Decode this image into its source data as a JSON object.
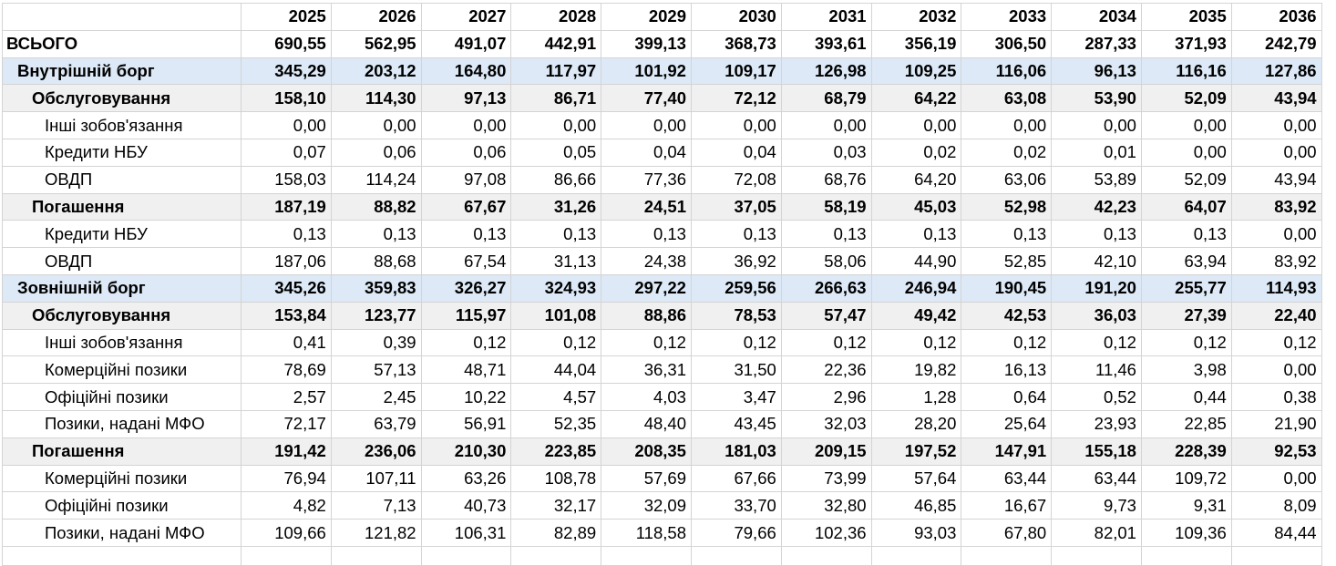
{
  "years": [
    "2025",
    "2026",
    "2027",
    "2028",
    "2029",
    "2030",
    "2031",
    "2032",
    "2033",
    "2034",
    "2035",
    "2036"
  ],
  "rows": [
    {
      "label": "ВСЬОГО",
      "level": 0,
      "values": [
        "690,55",
        "562,95",
        "491,07",
        "442,91",
        "399,13",
        "368,73",
        "393,61",
        "356,19",
        "306,50",
        "287,33",
        "371,93",
        "242,79"
      ]
    },
    {
      "label": "Внутрішній борг",
      "level": 1,
      "values": [
        "345,29",
        "203,12",
        "164,80",
        "117,97",
        "101,92",
        "109,17",
        "126,98",
        "109,25",
        "116,06",
        "96,13",
        "116,16",
        "127,86"
      ]
    },
    {
      "label": "Обслуговування",
      "level": 2,
      "values": [
        "158,10",
        "114,30",
        "97,13",
        "86,71",
        "77,40",
        "72,12",
        "68,79",
        "64,22",
        "63,08",
        "53,90",
        "52,09",
        "43,94"
      ]
    },
    {
      "label": "Інші зобов'язання",
      "level": 3,
      "values": [
        "0,00",
        "0,00",
        "0,00",
        "0,00",
        "0,00",
        "0,00",
        "0,00",
        "0,00",
        "0,00",
        "0,00",
        "0,00",
        "0,00"
      ]
    },
    {
      "label": "Кредити НБУ",
      "level": 3,
      "values": [
        "0,07",
        "0,06",
        "0,06",
        "0,05",
        "0,04",
        "0,04",
        "0,03",
        "0,02",
        "0,02",
        "0,01",
        "0,00",
        "0,00"
      ]
    },
    {
      "label": "ОВДП",
      "level": 3,
      "values": [
        "158,03",
        "114,24",
        "97,08",
        "86,66",
        "77,36",
        "72,08",
        "68,76",
        "64,20",
        "63,06",
        "53,89",
        "52,09",
        "43,94"
      ]
    },
    {
      "label": "Погашення",
      "level": 2,
      "values": [
        "187,19",
        "88,82",
        "67,67",
        "31,26",
        "24,51",
        "37,05",
        "58,19",
        "45,03",
        "52,98",
        "42,23",
        "64,07",
        "83,92"
      ]
    },
    {
      "label": "Кредити НБУ",
      "level": 3,
      "values": [
        "0,13",
        "0,13",
        "0,13",
        "0,13",
        "0,13",
        "0,13",
        "0,13",
        "0,13",
        "0,13",
        "0,13",
        "0,13",
        "0,00"
      ]
    },
    {
      "label": "ОВДП",
      "level": 3,
      "values": [
        "187,06",
        "88,68",
        "67,54",
        "31,13",
        "24,38",
        "36,92",
        "58,06",
        "44,90",
        "52,85",
        "42,10",
        "63,94",
        "83,92"
      ]
    },
    {
      "label": "Зовнішній борг",
      "level": 1,
      "values": [
        "345,26",
        "359,83",
        "326,27",
        "324,93",
        "297,22",
        "259,56",
        "266,63",
        "246,94",
        "190,45",
        "191,20",
        "255,77",
        "114,93"
      ]
    },
    {
      "label": "Обслуговування",
      "level": 2,
      "values": [
        "153,84",
        "123,77",
        "115,97",
        "101,08",
        "88,86",
        "78,53",
        "57,47",
        "49,42",
        "42,53",
        "36,03",
        "27,39",
        "22,40"
      ]
    },
    {
      "label": "Інші зобов'язання",
      "level": 3,
      "values": [
        "0,41",
        "0,39",
        "0,12",
        "0,12",
        "0,12",
        "0,12",
        "0,12",
        "0,12",
        "0,12",
        "0,12",
        "0,12",
        "0,12"
      ]
    },
    {
      "label": "Комерційні позики",
      "level": 3,
      "values": [
        "78,69",
        "57,13",
        "48,71",
        "44,04",
        "36,31",
        "31,50",
        "22,36",
        "19,82",
        "16,13",
        "11,46",
        "3,98",
        "0,00"
      ]
    },
    {
      "label": "Офіційні позики",
      "level": 3,
      "values": [
        "2,57",
        "2,45",
        "10,22",
        "4,57",
        "4,03",
        "3,47",
        "2,96",
        "1,28",
        "0,64",
        "0,52",
        "0,44",
        "0,38"
      ]
    },
    {
      "label": "Позики, надані МФО",
      "level": 3,
      "values": [
        "72,17",
        "63,79",
        "56,91",
        "52,35",
        "48,40",
        "43,45",
        "32,03",
        "28,20",
        "25,64",
        "23,93",
        "22,85",
        "21,90"
      ]
    },
    {
      "label": "Погашення",
      "level": 2,
      "values": [
        "191,42",
        "236,06",
        "210,30",
        "223,85",
        "208,35",
        "181,03",
        "209,15",
        "197,52",
        "147,91",
        "155,18",
        "228,39",
        "92,53"
      ]
    },
    {
      "label": "Комерційні позики",
      "level": 3,
      "values": [
        "76,94",
        "107,11",
        "63,26",
        "108,78",
        "57,69",
        "67,66",
        "73,99",
        "57,64",
        "63,44",
        "63,44",
        "109,72",
        "0,00"
      ]
    },
    {
      "label": "Офіційні позики",
      "level": 3,
      "values": [
        "4,82",
        "7,13",
        "40,73",
        "32,17",
        "32,09",
        "33,70",
        "32,80",
        "46,85",
        "16,67",
        "9,73",
        "9,31",
        "8,09"
      ]
    },
    {
      "label": "Позики, надані МФО",
      "level": 3,
      "values": [
        "109,66",
        "121,82",
        "106,31",
        "82,89",
        "118,58",
        "79,66",
        "102,36",
        "93,03",
        "67,80",
        "82,01",
        "109,36",
        "84,44"
      ]
    }
  ]
}
